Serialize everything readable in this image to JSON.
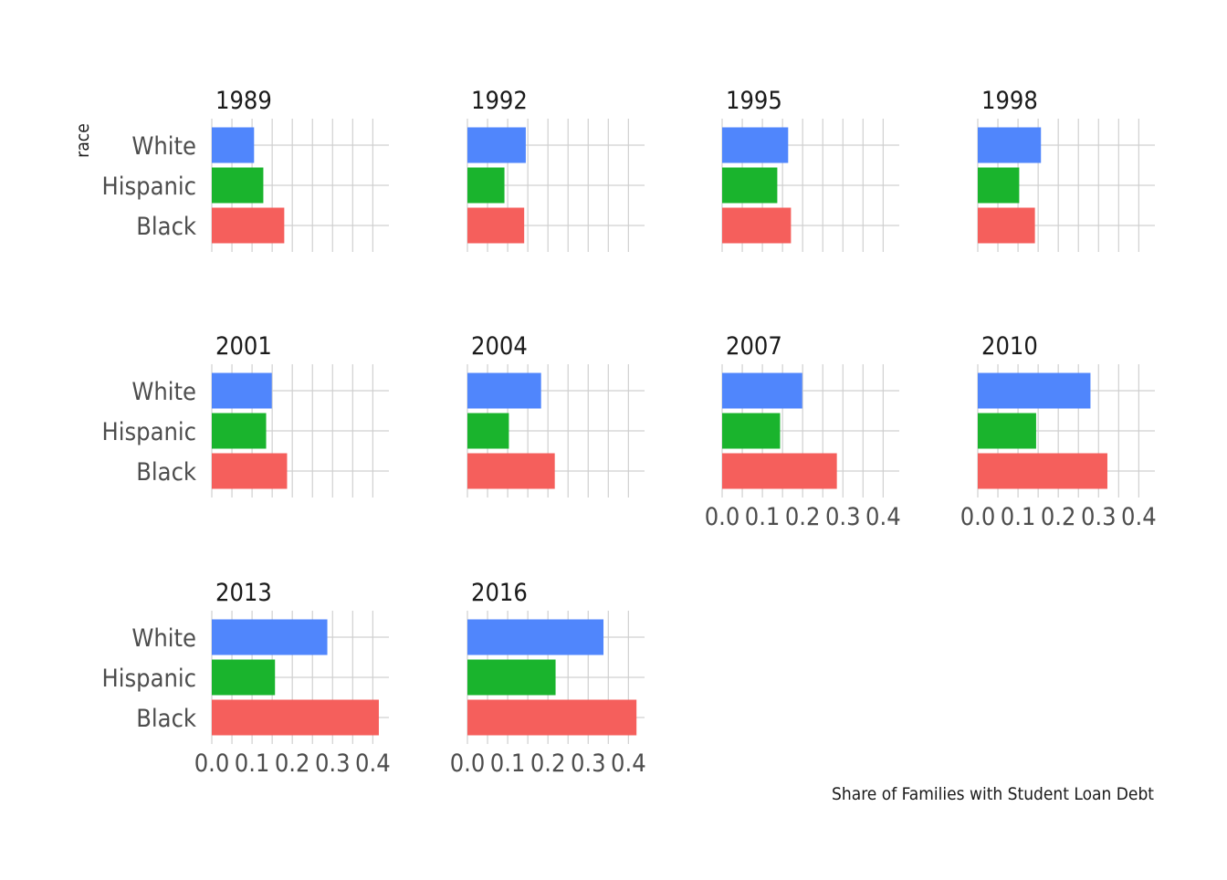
{
  "chart_data": {
    "type": "bar",
    "orientation": "horizontal",
    "facet_by": "year",
    "facet_columns": 4,
    "categories": [
      "White",
      "Hispanic",
      "Black"
    ],
    "colors": {
      "White": "#5086fc",
      "Hispanic": "#1ab42d",
      "Black": "#f55f5c"
    },
    "ylabel": "race",
    "caption": "Share of Families with Student Loan Debt",
    "xlim": [
      0,
      0.44
    ],
    "xticks": [
      "0.0",
      "0.1",
      "0.2",
      "0.3",
      "0.4"
    ],
    "grid": true,
    "facets": [
      {
        "year": "1989",
        "values": {
          "White": 0.105,
          "Hispanic": 0.128,
          "Black": 0.18
        },
        "show_x_axis": false,
        "show_y_labels": true
      },
      {
        "year": "1992",
        "values": {
          "White": 0.145,
          "Hispanic": 0.092,
          "Black": 0.141
        },
        "show_x_axis": false,
        "show_y_labels": false
      },
      {
        "year": "1995",
        "values": {
          "White": 0.164,
          "Hispanic": 0.137,
          "Black": 0.171
        },
        "show_x_axis": false,
        "show_y_labels": false
      },
      {
        "year": "1998",
        "values": {
          "White": 0.157,
          "Hispanic": 0.103,
          "Black": 0.142
        },
        "show_x_axis": false,
        "show_y_labels": false
      },
      {
        "year": "2001",
        "values": {
          "White": 0.149,
          "Hispanic": 0.135,
          "Black": 0.187
        },
        "show_x_axis": false,
        "show_y_labels": true
      },
      {
        "year": "2004",
        "values": {
          "White": 0.183,
          "Hispanic": 0.103,
          "Black": 0.217
        },
        "show_x_axis": false,
        "show_y_labels": false
      },
      {
        "year": "2007",
        "values": {
          "White": 0.199,
          "Hispanic": 0.144,
          "Black": 0.285
        },
        "show_x_axis": true,
        "show_y_labels": false
      },
      {
        "year": "2010",
        "values": {
          "White": 0.28,
          "Hispanic": 0.145,
          "Black": 0.322
        },
        "show_x_axis": true,
        "show_y_labels": false
      },
      {
        "year": "2013",
        "values": {
          "White": 0.287,
          "Hispanic": 0.157,
          "Black": 0.415
        },
        "show_x_axis": true,
        "show_y_labels": true
      },
      {
        "year": "2016",
        "values": {
          "White": 0.338,
          "Hispanic": 0.219,
          "Black": 0.42
        },
        "show_x_axis": true,
        "show_y_labels": false
      }
    ]
  }
}
